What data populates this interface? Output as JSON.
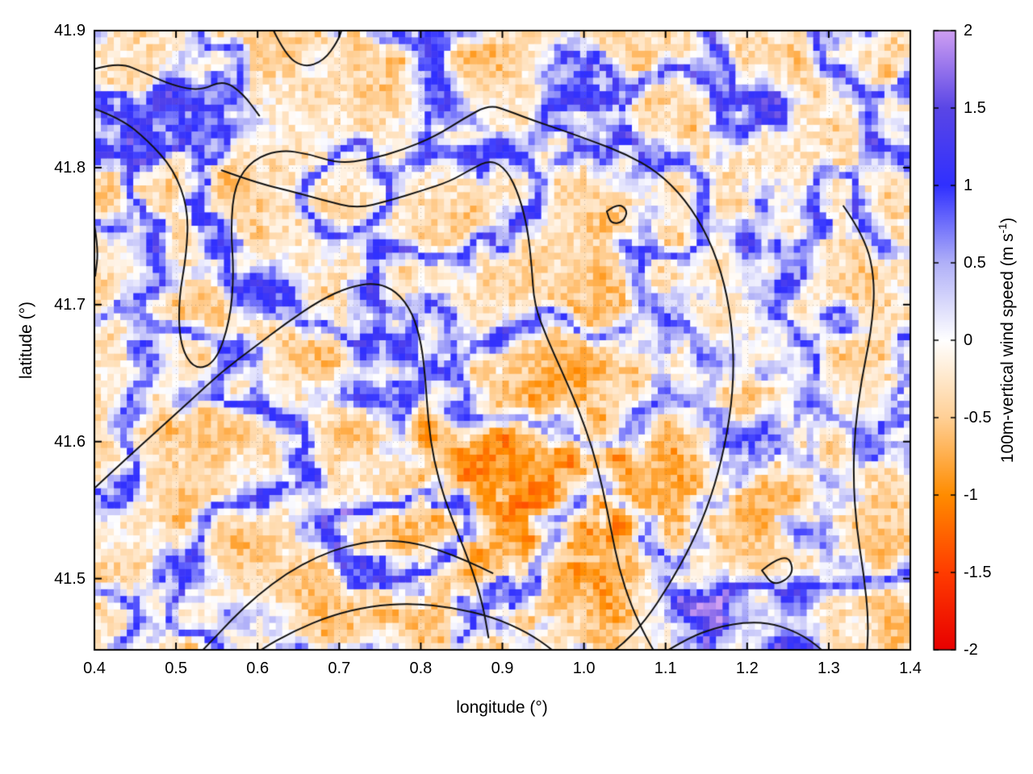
{
  "chart_data": {
    "type": "heatmap",
    "title": "",
    "xlabel": "longitude (°)",
    "ylabel": "latitude (°)",
    "x_range": [
      0.4,
      1.4
    ],
    "y_range": [
      41.448,
      41.9
    ],
    "x_ticks": [
      0.4,
      0.5,
      0.6,
      0.7,
      0.8,
      0.9,
      1.0,
      1.1,
      1.2,
      1.3,
      1.4
    ],
    "x_tick_labels": [
      "0.4",
      "0.5",
      "0.6",
      "0.7",
      "0.8",
      "0.9",
      "1.0",
      "1.1",
      "1.2",
      "1.3",
      "1.4"
    ],
    "y_ticks": [
      41.5,
      41.6,
      41.7,
      41.8,
      41.9
    ],
    "y_tick_labels": [
      "41.5",
      "41.6",
      "41.7",
      "41.8",
      "41.9"
    ],
    "grid_dotted": true,
    "colorbar": {
      "label_prefix": "100m-vertical wind speed (m s",
      "label_sup": "-1",
      "label_suffix": ")",
      "range": [
        -2,
        2
      ],
      "ticks": [
        -2,
        -1.5,
        -1,
        -0.5,
        0,
        0.5,
        1,
        1.5,
        2
      ],
      "tick_labels": [
        "-2",
        "-1.5",
        "-1",
        "-0.5",
        "0",
        "0.5",
        "1",
        "1.5",
        "2"
      ],
      "stops": [
        [
          -2.0,
          "#e80000"
        ],
        [
          -1.5,
          "#ff3c00"
        ],
        [
          -1.0,
          "#ff8c00"
        ],
        [
          -0.5,
          "#ffd096"
        ],
        [
          0.0,
          "#ffffff"
        ],
        [
          0.5,
          "#b0b0f8"
        ],
        [
          1.0,
          "#3030ff"
        ],
        [
          1.5,
          "#5a46e6"
        ],
        [
          2.0,
          "#cf9ff2"
        ]
      ]
    },
    "grid": {
      "nx": 126,
      "ny": 92
    },
    "field": {
      "seed": 7,
      "fil_freq": 0.08,
      "fil_sharp": 3.2,
      "fil_pow": 1.8,
      "fil_amp_min": 0.85,
      "fil_amp_max": 2.0,
      "base_level": -0.38,
      "base_amp": 0.45,
      "base_freq": 0.18,
      "speckle": 0.25,
      "mod_freq": 0.018,
      "blobs": [
        {
          "lon": 1.16,
          "lat": 41.475,
          "slon": 0.06,
          "slat": 0.022,
          "amp": 1.25
        },
        {
          "lon": 1.0,
          "lat": 41.53,
          "slon": 0.15,
          "slat": 0.055,
          "amp": -0.5
        },
        {
          "lon": 0.9,
          "lat": 41.6,
          "slon": 0.1,
          "slat": 0.05,
          "amp": -0.3
        }
      ]
    },
    "contour_color": "#111111",
    "contour_width": 2,
    "contours": [
      [
        [
          0.4,
          41.872
        ],
        [
          0.43,
          41.877
        ],
        [
          0.462,
          41.869
        ],
        [
          0.496,
          41.86
        ],
        [
          0.53,
          41.856
        ],
        [
          0.558,
          41.864
        ],
        [
          0.582,
          41.854
        ],
        [
          0.602,
          41.838
        ]
      ],
      [
        [
          0.4,
          41.843
        ],
        [
          0.432,
          41.836
        ],
        [
          0.465,
          41.82
        ],
        [
          0.497,
          41.799
        ],
        [
          0.515,
          41.77
        ],
        [
          0.513,
          41.737
        ],
        [
          0.503,
          41.703
        ],
        [
          0.505,
          41.67
        ],
        [
          0.523,
          41.652
        ],
        [
          0.549,
          41.658
        ],
        [
          0.566,
          41.688
        ],
        [
          0.571,
          41.722
        ],
        [
          0.567,
          41.757
        ],
        [
          0.572,
          41.788
        ],
        [
          0.594,
          41.806
        ],
        [
          0.628,
          41.813
        ],
        [
          0.663,
          41.81
        ],
        [
          0.699,
          41.803
        ],
        [
          0.738,
          41.806
        ],
        [
          0.778,
          41.813
        ],
        [
          0.818,
          41.823
        ],
        [
          0.853,
          41.836
        ],
        [
          0.884,
          41.846
        ],
        [
          0.909,
          41.841
        ],
        [
          0.94,
          41.834
        ],
        [
          0.975,
          41.827
        ],
        [
          1.012,
          41.819
        ],
        [
          1.051,
          41.81
        ],
        [
          1.09,
          41.797
        ],
        [
          1.124,
          41.777
        ],
        [
          1.153,
          41.749
        ],
        [
          1.173,
          41.715
        ],
        [
          1.183,
          41.677
        ],
        [
          1.183,
          41.637
        ],
        [
          1.173,
          41.597
        ],
        [
          1.156,
          41.559
        ],
        [
          1.132,
          41.525
        ],
        [
          1.104,
          41.495
        ],
        [
          1.075,
          41.469
        ],
        [
          1.044,
          41.45
        ],
        [
          1.013,
          41.438
        ]
      ],
      [
        [
          0.556,
          41.798
        ],
        [
          0.598,
          41.789
        ],
        [
          0.64,
          41.783
        ],
        [
          0.682,
          41.776
        ],
        [
          0.722,
          41.77
        ],
        [
          0.762,
          41.776
        ],
        [
          0.8,
          41.783
        ],
        [
          0.836,
          41.79
        ],
        [
          0.862,
          41.799
        ],
        [
          0.886,
          41.806
        ],
        [
          0.906,
          41.798
        ],
        [
          0.921,
          41.779
        ],
        [
          0.931,
          41.755
        ],
        [
          0.936,
          41.728
        ],
        [
          0.939,
          41.7
        ],
        [
          0.955,
          41.675
        ],
        [
          0.974,
          41.65
        ],
        [
          0.993,
          41.624
        ],
        [
          1.01,
          41.596
        ],
        [
          1.023,
          41.566
        ],
        [
          1.033,
          41.536
        ],
        [
          1.043,
          41.507
        ],
        [
          1.058,
          41.48
        ],
        [
          1.076,
          41.457
        ],
        [
          1.093,
          41.44
        ]
      ],
      [
        [
          0.4,
          41.566
        ],
        [
          0.438,
          41.587
        ],
        [
          0.477,
          41.608
        ],
        [
          0.516,
          41.629
        ],
        [
          0.556,
          41.651
        ],
        [
          0.596,
          41.669
        ],
        [
          0.636,
          41.687
        ],
        [
          0.676,
          41.703
        ],
        [
          0.712,
          41.713
        ],
        [
          0.744,
          41.716
        ],
        [
          0.77,
          41.71
        ],
        [
          0.79,
          41.694
        ],
        [
          0.801,
          41.671
        ],
        [
          0.806,
          41.644
        ],
        [
          0.809,
          41.615
        ],
        [
          0.816,
          41.586
        ],
        [
          0.829,
          41.558
        ],
        [
          0.846,
          41.532
        ],
        [
          0.863,
          41.507
        ],
        [
          0.876,
          41.481
        ],
        [
          0.883,
          41.457
        ]
      ],
      [
        [
          0.513,
          41.436
        ],
        [
          0.54,
          41.452
        ],
        [
          0.568,
          41.47
        ],
        [
          0.6,
          41.488
        ],
        [
          0.636,
          41.504
        ],
        [
          0.673,
          41.516
        ],
        [
          0.71,
          41.524
        ],
        [
          0.748,
          41.528
        ],
        [
          0.786,
          41.527
        ],
        [
          0.822,
          41.521
        ],
        [
          0.856,
          41.513
        ],
        [
          0.888,
          41.504
        ]
      ],
      [
        [
          0.56,
          41.43
        ],
        [
          0.6,
          41.447
        ],
        [
          0.645,
          41.462
        ],
        [
          0.69,
          41.473
        ],
        [
          0.738,
          41.48
        ],
        [
          0.788,
          41.482
        ],
        [
          0.838,
          41.479
        ],
        [
          0.888,
          41.472
        ],
        [
          0.93,
          41.461
        ],
        [
          0.962,
          41.448
        ],
        [
          0.982,
          41.436
        ]
      ],
      [
        [
          1.028,
          41.768
        ],
        [
          1.041,
          41.774
        ],
        [
          1.054,
          41.769
        ],
        [
          1.048,
          41.76
        ],
        [
          1.033,
          41.759
        ],
        [
          1.028,
          41.768
        ]
      ],
      [
        [
          1.218,
          41.506
        ],
        [
          1.247,
          41.52
        ],
        [
          1.259,
          41.504
        ],
        [
          1.233,
          41.494
        ],
        [
          1.218,
          41.506
        ]
      ],
      [
        [
          1.072,
          41.436
        ],
        [
          1.12,
          41.455
        ],
        [
          1.17,
          41.466
        ],
        [
          1.22,
          41.469
        ],
        [
          1.262,
          41.461
        ],
        [
          1.293,
          41.448
        ],
        [
          1.31,
          41.435
        ]
      ],
      [
        [
          1.318,
          41.772
        ],
        [
          1.345,
          41.749
        ],
        [
          1.357,
          41.716
        ],
        [
          1.352,
          41.68
        ],
        [
          1.34,
          41.645
        ],
        [
          1.332,
          41.609
        ],
        [
          1.33,
          41.573
        ],
        [
          1.334,
          41.537
        ],
        [
          1.343,
          41.503
        ],
        [
          1.349,
          41.469
        ],
        [
          1.346,
          41.438
        ]
      ],
      [
        [
          0.618,
          41.902
        ],
        [
          0.634,
          41.882
        ],
        [
          0.657,
          41.873
        ],
        [
          0.681,
          41.878
        ],
        [
          0.698,
          41.892
        ],
        [
          0.704,
          41.902
        ]
      ],
      [
        [
          0.4,
          41.758
        ],
        [
          0.405,
          41.74
        ],
        [
          0.401,
          41.721
        ]
      ]
    ]
  }
}
